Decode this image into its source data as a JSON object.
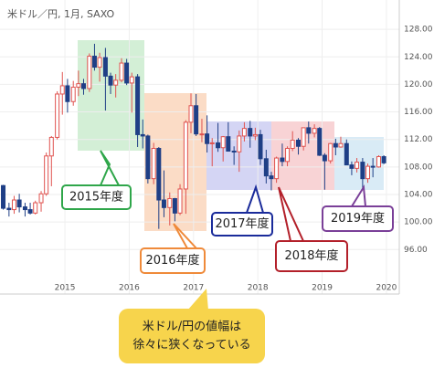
{
  "chart_data": {
    "type": "candlestick",
    "title": "米ドル／円, 1月, SAXO",
    "x": [
      2014.04,
      2014.13,
      2014.21,
      2014.29,
      2014.38,
      2014.46,
      2014.54,
      2014.63,
      2014.71,
      2014.79,
      2014.88,
      2014.96,
      2015.04,
      2015.13,
      2015.21,
      2015.29,
      2015.38,
      2015.46,
      2015.54,
      2015.63,
      2015.71,
      2015.79,
      2015.88,
      2015.96,
      2016.04,
      2016.13,
      2016.21,
      2016.29,
      2016.38,
      2016.46,
      2016.54,
      2016.63,
      2016.71,
      2016.79,
      2016.88,
      2016.96,
      2017.04,
      2017.13,
      2017.21,
      2017.29,
      2017.38,
      2017.46,
      2017.54,
      2017.63,
      2017.71,
      2017.79,
      2017.88,
      2017.96,
      2018.04,
      2018.13,
      2018.21,
      2018.29,
      2018.38,
      2018.46,
      2018.54,
      2018.63,
      2018.71,
      2018.79,
      2018.88,
      2018.96,
      2019.04,
      2019.13,
      2019.21,
      2019.29,
      2019.38,
      2019.46,
      2019.54,
      2019.63,
      2019.71,
      2019.79,
      2019.88,
      2019.96
    ],
    "open": [
      105.3,
      102.0,
      101.8,
      103.2,
      102.2,
      101.8,
      101.3,
      102.8,
      104.1,
      109.6,
      112.3,
      118.6,
      119.8,
      117.5,
      119.6,
      120.1,
      119.4,
      124.1,
      122.5,
      123.9,
      121.2,
      119.9,
      120.6,
      123.1,
      120.2,
      121.1,
      112.7,
      112.5,
      106.3,
      110.7,
      103.2,
      102.1,
      103.4,
      101.3,
      104.8,
      114.5,
      116.9,
      112.8,
      112.8,
      111.4,
      111.5,
      110.8,
      112.4,
      110.3,
      110.2,
      112.5,
      113.6,
      112.5,
      112.7,
      109.2,
      106.7,
      106.3,
      109.3,
      108.8,
      110.7,
      111.9,
      111.0,
      113.7,
      112.9,
      113.6,
      109.7,
      108.9,
      111.4,
      110.9,
      111.4,
      108.3,
      107.8,
      108.7,
      106.3,
      108.1,
      108.0,
      109.5
    ],
    "high": [
      105.4,
      102.8,
      103.8,
      104.1,
      102.8,
      102.8,
      103.1,
      104.5,
      110.1,
      112.5,
      119.0,
      121.8,
      120.8,
      120.5,
      122.0,
      120.8,
      124.5,
      125.9,
      124.6,
      125.3,
      121.7,
      121.5,
      123.8,
      123.7,
      121.7,
      121.5,
      114.9,
      112.7,
      111.5,
      110.9,
      107.5,
      104.3,
      103.5,
      105.5,
      114.8,
      118.7,
      118.6,
      115.0,
      115.5,
      112.2,
      114.4,
      112.5,
      114.5,
      111.0,
      113.3,
      114.5,
      114.7,
      113.7,
      113.4,
      110.5,
      107.3,
      109.5,
      111.4,
      111.0,
      113.2,
      112.2,
      113.7,
      114.6,
      114.2,
      113.8,
      110.0,
      111.5,
      112.1,
      112.4,
      112.0,
      108.8,
      109.3,
      109.3,
      108.5,
      109.3,
      109.7,
      109.7
    ],
    "low": [
      101.8,
      100.8,
      101.2,
      101.4,
      100.8,
      101.1,
      101.1,
      101.5,
      103.8,
      105.2,
      112.0,
      115.6,
      115.9,
      116.9,
      118.3,
      118.5,
      118.9,
      122.0,
      120.4,
      116.2,
      118.6,
      118.1,
      120.3,
      119.9,
      115.9,
      110.9,
      110.7,
      105.6,
      105.5,
      99.0,
      100.7,
      99.5,
      100.1,
      101.0,
      101.2,
      112.9,
      112.5,
      111.6,
      110.1,
      108.1,
      110.2,
      108.8,
      110.6,
      108.3,
      107.3,
      111.7,
      110.8,
      111.9,
      108.3,
      105.6,
      104.6,
      105.7,
      108.1,
      108.1,
      110.3,
      109.8,
      110.4,
      111.4,
      112.3,
      109.6,
      104.7,
      108.5,
      109.7,
      110.8,
      108.3,
      106.8,
      107.2,
      104.5,
      105.7,
      106.5,
      107.9,
      108.4
    ],
    "close": [
      102.0,
      101.8,
      103.2,
      102.2,
      101.8,
      101.3,
      102.8,
      104.1,
      109.6,
      112.3,
      118.6,
      119.8,
      117.5,
      119.6,
      120.1,
      119.4,
      124.1,
      122.5,
      123.9,
      121.2,
      119.9,
      120.6,
      123.1,
      120.2,
      121.1,
      112.7,
      112.5,
      106.3,
      110.7,
      103.2,
      102.1,
      103.4,
      101.3,
      104.8,
      114.5,
      116.9,
      112.8,
      112.8,
      111.4,
      111.5,
      110.8,
      112.4,
      110.3,
      110.2,
      112.5,
      113.6,
      112.5,
      112.7,
      109.2,
      106.7,
      106.3,
      109.3,
      108.8,
      110.7,
      111.9,
      111.0,
      113.7,
      112.9,
      113.6,
      109.7,
      108.9,
      111.4,
      110.9,
      111.4,
      108.3,
      107.8,
      108.7,
      106.3,
      108.1,
      108.0,
      109.5,
      108.6
    ],
    "up_color": "#e0524f",
    "down_color": "#1f3f86",
    "xlim": [
      2013.99,
      2020.2
    ],
    "xticks": [
      2015,
      2016,
      2017,
      2018,
      2019,
      2020
    ],
    "ylim": [
      89.8,
      131.6
    ],
    "yticks": [
      {
        "value": 96,
        "label": "96.00"
      },
      {
        "value": 100,
        "label": "100.00"
      },
      {
        "value": 104,
        "label": "104.00"
      },
      {
        "value": 108,
        "label": "108.00"
      },
      {
        "value": 112,
        "label": "112.00"
      },
      {
        "value": 116,
        "label": "116.00"
      },
      {
        "value": 120,
        "label": "120.00"
      },
      {
        "value": 124,
        "label": "124.00"
      },
      {
        "value": 128,
        "label": "128.00"
      }
    ],
    "grid": true,
    "annotations": [
      "2015年度",
      "2016年度",
      "2017年度",
      "2018年度",
      "2019年度"
    ],
    "callout": [
      "米ドル/円の値幅は",
      "徐々に狭くなっている"
    ]
  }
}
